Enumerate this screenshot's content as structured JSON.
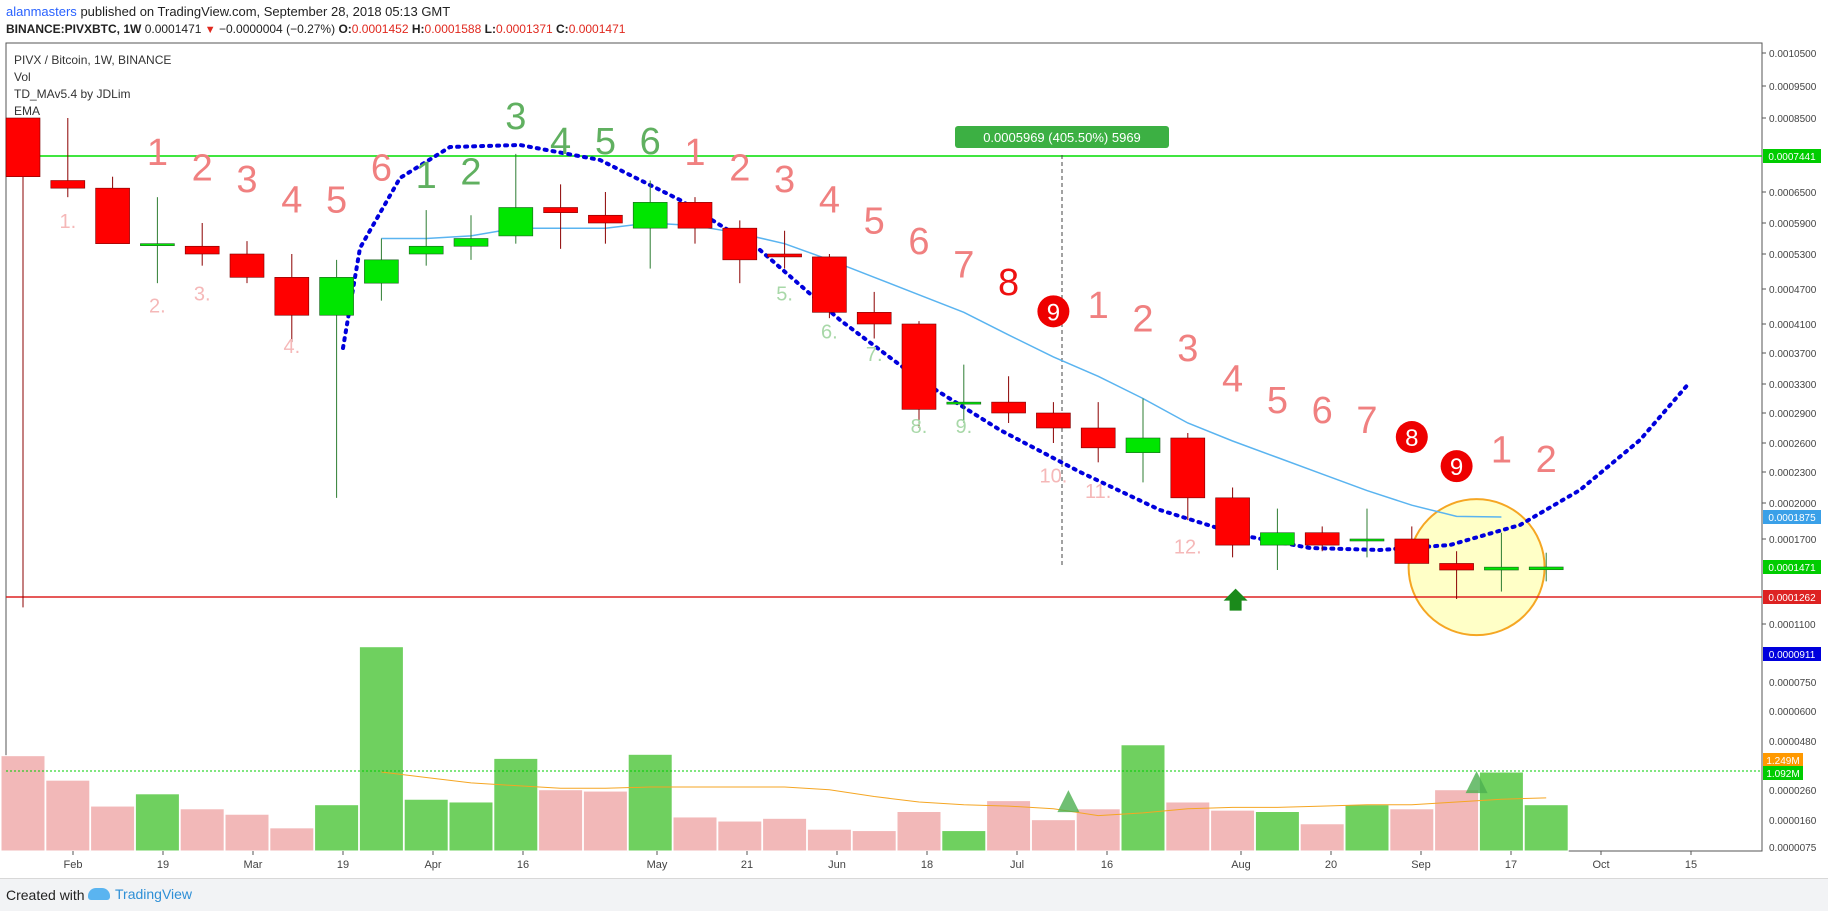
{
  "header": {
    "author": "alanmasters",
    "published_text": "published on TradingView.com, September 28, 2018 05:13 GMT",
    "symbol": "BINANCE:PIVXBTC, 1W",
    "last": "0.0001471",
    "change_arrow": "▼",
    "change": "−0.0000004 (−0.27%)",
    "o_label": "O:",
    "o": "0.0001452",
    "h_label": "H:",
    "h": "0.0001588",
    "l_label": "L:",
    "l": "0.0001371",
    "c_label": "C:",
    "c": "0.0001471"
  },
  "legend": [
    "PIVX / Bitcoin, 1W, BINANCE",
    "Vol",
    "TD_MAv5.4 by JDLim",
    "EMA"
  ],
  "measure_label": "0.0005969 (405.50%) 5969",
  "footer": {
    "created": "Created with",
    "brand": "TradingView"
  },
  "colors": {
    "up": "#00e600",
    "down": "#ff0000",
    "ema": "#5ab4f0",
    "dotted": "#0000dd",
    "hline_green": "#00dd00",
    "hline_red": "#dd2222",
    "td_red": "#f08080",
    "td_green": "#60b060",
    "vol_up": "#6fd05f",
    "vol_down": "#f2b8b8",
    "highlight": "#ffff99"
  },
  "chart_data": {
    "type": "candlestick",
    "title": "PIVX / Bitcoin, 1W, BINANCE",
    "x_ticks": [
      "Feb",
      "19",
      "Mar",
      "19",
      "Apr",
      "16",
      "May",
      "21",
      "Jun",
      "18",
      "Jul",
      "16",
      "Aug",
      "20",
      "Sep",
      "17",
      "Oct",
      "15"
    ],
    "y_ticks": [
      "0.0010500",
      "0.0009500",
      "0.0008500",
      "0.0007441",
      "0.0006500",
      "0.0005900",
      "0.0005300",
      "0.0004700",
      "0.0004100",
      "0.0003700",
      "0.0003300",
      "0.0002900",
      "0.0002600",
      "0.0002300",
      "0.0002000",
      "0.0001875",
      "0.0001700",
      "0.0001471",
      "0.0001262",
      "0.0001100",
      "0.0000911"
    ],
    "vol_ticks": [
      "0.0000750",
      "0.0000600",
      "0.0000480",
      "1.249M",
      "1.092M",
      "0.0000260",
      "0.0000160",
      "0.0000075"
    ],
    "price_badges": [
      {
        "label": "0.0007441",
        "value": 0.0007441,
        "color": "#00cc00"
      },
      {
        "label": "0.0001875",
        "value": 0.0001875,
        "color": "#3aa0e8"
      },
      {
        "label": "0.0001471",
        "value": 0.0001471,
        "color": "#00cc00"
      },
      {
        "label": "0.0001262",
        "value": 0.0001262,
        "color": "#dd2222"
      },
      {
        "label": "0.0000911",
        "value": 9.11e-05,
        "color": "#0000dd"
      }
    ],
    "vol_badges": [
      {
        "label": "1.249M",
        "value": 1.249,
        "color": "#ff9900"
      },
      {
        "label": "1.092M",
        "value": 1.092,
        "color": "#00cc00"
      }
    ],
    "hlines": [
      {
        "value": 0.0007441,
        "color": "#00dd00"
      },
      {
        "value": 0.0001262,
        "color": "#dd2222"
      }
    ],
    "candles": [
      {
        "o": 0.00085,
        "h": 0.00085,
        "l": 0.00012,
        "c": 0.00069
      },
      {
        "o": 0.00068,
        "h": 0.00085,
        "l": 0.00064,
        "c": 0.00066
      },
      {
        "o": 0.00066,
        "h": 0.00069,
        "l": 0.00055,
        "c": 0.00055
      },
      {
        "o": 0.00055,
        "h": 0.00064,
        "l": 0.00048,
        "c": 0.00055
      },
      {
        "o": 0.000545,
        "h": 0.00059,
        "l": 0.00051,
        "c": 0.00053
      },
      {
        "o": 0.00053,
        "h": 0.000555,
        "l": 0.00048,
        "c": 0.00049
      },
      {
        "o": 0.00049,
        "h": 0.00053,
        "l": 0.000385,
        "c": 0.000425
      },
      {
        "o": 0.000425,
        "h": 0.00052,
        "l": 0.000205,
        "c": 0.00049
      },
      {
        "o": 0.00048,
        "h": 0.00056,
        "l": 0.00045,
        "c": 0.00052
      },
      {
        "o": 0.00053,
        "h": 0.000615,
        "l": 0.00051,
        "c": 0.000545
      },
      {
        "o": 0.000545,
        "h": 0.000605,
        "l": 0.00052,
        "c": 0.00056
      },
      {
        "o": 0.000565,
        "h": 0.00075,
        "l": 0.00055,
        "c": 0.00062
      },
      {
        "o": 0.00062,
        "h": 0.00067,
        "l": 0.00054,
        "c": 0.00061
      },
      {
        "o": 0.000605,
        "h": 0.00065,
        "l": 0.00055,
        "c": 0.00059
      },
      {
        "o": 0.00058,
        "h": 0.00068,
        "l": 0.000505,
        "c": 0.00063
      },
      {
        "o": 0.00063,
        "h": 0.00064,
        "l": 0.00055,
        "c": 0.00058
      },
      {
        "o": 0.00058,
        "h": 0.000595,
        "l": 0.00048,
        "c": 0.00052
      },
      {
        "o": 0.00053,
        "h": 0.000575,
        "l": 0.000505,
        "c": 0.000525
      },
      {
        "o": 0.000525,
        "h": 0.00053,
        "l": 0.00042,
        "c": 0.00043
      },
      {
        "o": 0.00043,
        "h": 0.000465,
        "l": 0.00039,
        "c": 0.00041
      },
      {
        "o": 0.00041,
        "h": 0.000415,
        "l": 0.000275,
        "c": 0.000295
      },
      {
        "o": 0.000305,
        "h": 0.000355,
        "l": 0.00028,
        "c": 0.000305
      },
      {
        "o": 0.000305,
        "h": 0.00034,
        "l": 0.00028,
        "c": 0.00029
      },
      {
        "o": 0.00029,
        "h": 0.000305,
        "l": 0.00026,
        "c": 0.000275
      },
      {
        "o": 0.000275,
        "h": 0.000305,
        "l": 0.00024,
        "c": 0.000255
      },
      {
        "o": 0.00025,
        "h": 0.00031,
        "l": 0.00022,
        "c": 0.000265
      },
      {
        "o": 0.000265,
        "h": 0.00027,
        "l": 0.000185,
        "c": 0.000205
      },
      {
        "o": 0.000205,
        "h": 0.000215,
        "l": 0.000155,
        "c": 0.000165
      },
      {
        "o": 0.000165,
        "h": 0.000195,
        "l": 0.000145,
        "c": 0.000175
      },
      {
        "o": 0.000175,
        "h": 0.00018,
        "l": 0.00016,
        "c": 0.000165
      },
      {
        "o": 0.00017,
        "h": 0.000195,
        "l": 0.000155,
        "c": 0.00017
      },
      {
        "o": 0.00017,
        "h": 0.00018,
        "l": 0.00015,
        "c": 0.00015
      },
      {
        "o": 0.00015,
        "h": 0.00016,
        "l": 0.000125,
        "c": 0.000145
      },
      {
        "o": 0.000145,
        "h": 0.000175,
        "l": 0.00013,
        "c": 0.000147
      },
      {
        "o": 0.0001452,
        "h": 0.0001588,
        "l": 0.0001371,
        "c": 0.0001471
      }
    ],
    "volume": [
      7e-05,
      5.2e-05,
      3.3e-05,
      4.2e-05,
      3.1e-05,
      2.7e-05,
      1.7e-05,
      3.4e-05,
      0.00015,
      3.8e-05,
      3.6e-05,
      6.8e-05,
      4.5e-05,
      4.4e-05,
      7.1e-05,
      2.5e-05,
      2.2e-05,
      2.4e-05,
      1.6e-05,
      1.5e-05,
      2.9e-05,
      1.5e-05,
      3.7e-05,
      2.3e-05,
      3.1e-05,
      7.8e-05,
      3.6e-05,
      3e-05,
      2.9e-05,
      2e-05,
      3.4e-05,
      3.1e-05,
      4.5e-05,
      5.8e-05,
      3.4e-05
    ],
    "ema": [
      null,
      null,
      null,
      null,
      null,
      null,
      null,
      null,
      0.00056,
      0.00056,
      0.000565,
      0.00058,
      0.00058,
      0.00058,
      0.00059,
      0.000585,
      0.00057,
      0.00055,
      0.00052,
      0.00049,
      0.00046,
      0.00043,
      0.000395,
      0.000365,
      0.00034,
      0.00031,
      0.00028,
      0.000262,
      0.000245,
      0.000228,
      0.000212,
      0.000198,
      0.000188,
      0.0001875,
      null
    ],
    "td_main": [
      {
        "t": "1",
        "i": 3,
        "v": 0.00072,
        "c": "r"
      },
      {
        "t": "2",
        "i": 4,
        "v": 0.00068,
        "c": "r"
      },
      {
        "t": "3",
        "i": 5,
        "v": 0.00065,
        "c": "r"
      },
      {
        "t": "4",
        "i": 6,
        "v": 0.00061,
        "c": "r"
      },
      {
        "t": "5",
        "i": 7,
        "v": 0.00061,
        "c": "r"
      },
      {
        "t": "6",
        "i": 8,
        "v": 0.00068,
        "c": "r"
      },
      {
        "t": "1",
        "i": 9,
        "v": 0.00066,
        "c": "g"
      },
      {
        "t": "2",
        "i": 10,
        "v": 0.00067,
        "c": "g"
      },
      {
        "t": "3",
        "i": 11,
        "v": 0.00082,
        "c": "g"
      },
      {
        "t": "4",
        "i": 12,
        "v": 0.00075,
        "c": "g"
      },
      {
        "t": "5",
        "i": 13,
        "v": 0.00075,
        "c": "g"
      },
      {
        "t": "6",
        "i": 14,
        "v": 0.00075,
        "c": "g"
      },
      {
        "t": "1",
        "i": 15,
        "v": 0.00072,
        "c": "r"
      },
      {
        "t": "2",
        "i": 16,
        "v": 0.00068,
        "c": "r"
      },
      {
        "t": "3",
        "i": 17,
        "v": 0.00065,
        "c": "r"
      },
      {
        "t": "4",
        "i": 18,
        "v": 0.00061,
        "c": "r"
      },
      {
        "t": "5",
        "i": 19,
        "v": 0.00057,
        "c": "r"
      },
      {
        "t": "6",
        "i": 20,
        "v": 0.00053,
        "c": "r"
      },
      {
        "t": "7",
        "i": 21,
        "v": 0.00049,
        "c": "r"
      },
      {
        "t": "8",
        "i": 22,
        "v": 0.00046,
        "c": "dr"
      },
      {
        "t": "1",
        "i": 24,
        "v": 0.00042,
        "c": "r"
      },
      {
        "t": "2",
        "i": 25,
        "v": 0.0004,
        "c": "r"
      },
      {
        "t": "3",
        "i": 26,
        "v": 0.00036,
        "c": "r"
      },
      {
        "t": "4",
        "i": 27,
        "v": 0.00032,
        "c": "r"
      },
      {
        "t": "5",
        "i": 28,
        "v": 0.00029,
        "c": "r"
      },
      {
        "t": "6",
        "i": 29,
        "v": 0.00028,
        "c": "r"
      },
      {
        "t": "7",
        "i": 30,
        "v": 0.00027,
        "c": "r"
      },
      {
        "t": "1",
        "i": 33,
        "v": 0.00024,
        "c": "r"
      },
      {
        "t": "2",
        "i": 34,
        "v": 0.00023,
        "c": "r"
      }
    ],
    "td_circles": [
      {
        "t": "9",
        "i": 23,
        "v": 0.00043
      },
      {
        "t": "8",
        "i": 31,
        "v": 0.000265
      },
      {
        "t": "9",
        "i": 32,
        "v": 0.000235
      }
    ],
    "td_small": [
      {
        "t": "1.",
        "i": 1,
        "v": 0.00058,
        "c": "r"
      },
      {
        "t": "2.",
        "i": 3,
        "v": 0.00043,
        "c": "r"
      },
      {
        "t": "3.",
        "i": 4,
        "v": 0.00045,
        "c": "r"
      },
      {
        "t": "4.",
        "i": 6,
        "v": 0.00037,
        "c": "r"
      },
      {
        "t": "5.",
        "i": 17,
        "v": 0.00045,
        "c": "g"
      },
      {
        "t": "6.",
        "i": 18,
        "v": 0.00039,
        "c": "g"
      },
      {
        "t": "7.",
        "i": 19,
        "v": 0.00036,
        "c": "g"
      },
      {
        "t": "8.",
        "i": 20,
        "v": 0.00027,
        "c": "g"
      },
      {
        "t": "9.",
        "i": 21,
        "v": 0.00027,
        "c": "g"
      },
      {
        "t": "10.",
        "i": 23,
        "v": 0.00022,
        "c": "r"
      },
      {
        "t": "11.",
        "i": 24,
        "v": 0.000205,
        "c": "r"
      },
      {
        "t": "12.",
        "i": 26,
        "v": 0.000158,
        "c": "r"
      }
    ]
  }
}
